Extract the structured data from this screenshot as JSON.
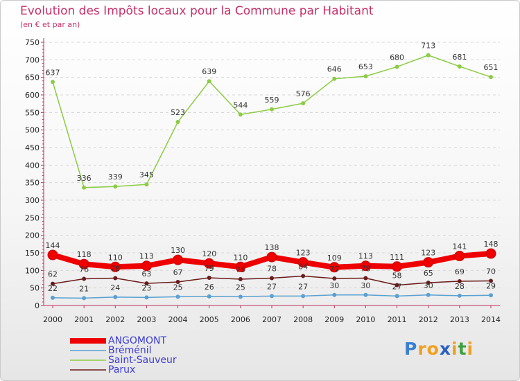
{
  "chart_data": {
    "type": "line",
    "title": "Evolution des Impôts locaux pour la Commune par Habitant",
    "subtitle": "(en € et par an)",
    "x": [
      "2000",
      "2001",
      "2002",
      "2003",
      "2004",
      "2005",
      "2006",
      "2007",
      "2008",
      "2009",
      "2010",
      "2011",
      "2012",
      "2013",
      "2014"
    ],
    "ylim": [
      0,
      750
    ],
    "yticks": [
      0,
      50,
      100,
      150,
      200,
      250,
      300,
      350,
      400,
      450,
      500,
      550,
      600,
      650,
      700,
      750
    ],
    "series": [
      {
        "name": "Saint-Sauveur",
        "color": "#8ccc44",
        "values": [
          637,
          336,
          339,
          345,
          523,
          639,
          544,
          559,
          576,
          646,
          653,
          680,
          713,
          681,
          651
        ]
      },
      {
        "name": "Parux",
        "color": "#6a1a1a",
        "values": [
          62,
          76,
          78,
          63,
          67,
          79,
          75,
          78,
          84,
          77,
          78,
          58,
          65,
          69,
          70
        ]
      },
      {
        "name": "Bréménil",
        "color": "#5aa0d0",
        "values": [
          22,
          21,
          24,
          23,
          25,
          26,
          25,
          27,
          27,
          30,
          30,
          27,
          30,
          28,
          29
        ]
      },
      {
        "name": "ANGOMONT",
        "color": "#ee0000",
        "values": [
          144,
          118,
          110,
          113,
          130,
          120,
          110,
          138,
          123,
          109,
          113,
          111,
          123,
          141,
          148
        ]
      }
    ],
    "legend": [
      "ANGOMONT",
      "Bréménil",
      "Saint-Sauveur",
      "Parux"
    ],
    "legend_position": "bottom-left"
  },
  "logo": {
    "letters": [
      "P",
      "r",
      "o",
      "x",
      "i",
      "t",
      "i"
    ],
    "colors": [
      "#3a7fd0",
      "#f0a020",
      "#f0a020",
      "#2a60c0",
      "#f0a020",
      "#40a040",
      "#f0a020"
    ]
  }
}
